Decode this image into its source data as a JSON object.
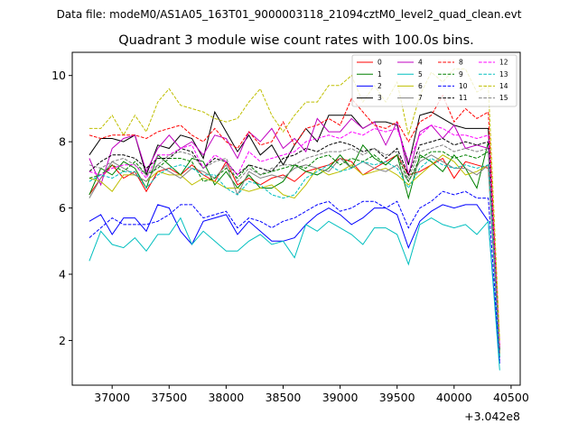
{
  "chart_data": {
    "type": "line",
    "suptitle": "Data file: modeM0/AS1A05_163T01_9000003118_21094cztM0_level2_quad_clean.evt",
    "title": "Quadrant 3 module wise count rates with 100.0s bins.",
    "xlabel": "",
    "ylabel": "",
    "x_offset_label": "+3.042e8",
    "xlim": [
      36650,
      40580
    ],
    "ylim": [
      0.65,
      10.7
    ],
    "x_ticks": [
      37000,
      37500,
      38000,
      38500,
      39000,
      39500,
      40000,
      40500
    ],
    "y_ticks": [
      2,
      4,
      6,
      8,
      10
    ],
    "grid": false,
    "legend_position": "top-right",
    "x": [
      36800,
      36900,
      37000,
      37100,
      37200,
      37300,
      37400,
      37500,
      37600,
      37700,
      37800,
      37900,
      38000,
      38100,
      38200,
      38300,
      38400,
      38500,
      38600,
      38700,
      38800,
      38900,
      39000,
      39100,
      39200,
      39300,
      39400,
      39500,
      39600,
      39700,
      39800,
      39900,
      40000,
      40100,
      40200,
      40300,
      40400
    ],
    "series": [
      {
        "name": "0",
        "color": "#ff0000",
        "dash": "solid",
        "values": [
          6.4,
          6.9,
          7.3,
          6.9,
          7.1,
          6.5,
          7.1,
          7.2,
          7.0,
          7.3,
          7.0,
          6.8,
          7.4,
          6.7,
          6.9,
          6.7,
          6.9,
          7.0,
          6.8,
          7.1,
          7.2,
          7.3,
          7.5,
          7.4,
          7.0,
          7.2,
          7.4,
          7.6,
          7.0,
          7.1,
          7.3,
          7.5,
          6.9,
          7.4,
          7.3,
          7.2,
          1.6
        ]
      },
      {
        "name": "1",
        "color": "#008000",
        "dash": "solid",
        "values": [
          6.4,
          7.2,
          7.0,
          7.4,
          7.2,
          6.6,
          7.6,
          7.3,
          7.0,
          7.5,
          7.4,
          6.7,
          7.1,
          6.6,
          7.0,
          6.6,
          6.6,
          6.8,
          7.3,
          7.1,
          7.0,
          7.2,
          7.6,
          7.2,
          7.9,
          7.5,
          7.3,
          7.6,
          6.3,
          7.6,
          7.4,
          7.1,
          7.6,
          7.2,
          6.6,
          8.0,
          1.5
        ]
      },
      {
        "name": "2",
        "color": "#0000ff",
        "dash": "solid",
        "values": [
          5.6,
          5.8,
          5.2,
          5.7,
          5.7,
          5.3,
          6.1,
          6.0,
          5.3,
          4.9,
          5.6,
          5.7,
          5.8,
          5.2,
          5.6,
          5.3,
          5.0,
          5.0,
          5.1,
          5.5,
          5.8,
          6.0,
          5.8,
          5.5,
          5.7,
          6.0,
          6.0,
          5.8,
          4.8,
          5.6,
          5.9,
          6.1,
          6.0,
          6.1,
          6.1,
          5.6,
          1.3
        ]
      },
      {
        "name": "3",
        "color": "#000000",
        "dash": "solid",
        "values": [
          7.6,
          8.1,
          8.1,
          8.0,
          8.2,
          7.0,
          7.9,
          7.8,
          8.2,
          8.1,
          7.5,
          8.9,
          8.3,
          7.7,
          8.2,
          7.6,
          7.9,
          7.3,
          7.9,
          8.4,
          8.0,
          8.8,
          8.8,
          8.8,
          8.4,
          8.6,
          8.6,
          8.5,
          7.3,
          8.8,
          8.9,
          8.7,
          8.5,
          8.4,
          8.4,
          8.4,
          1.7
        ]
      },
      {
        "name": "4",
        "color": "#c000c0",
        "dash": "solid",
        "values": [
          7.5,
          6.7,
          7.8,
          8.1,
          8.2,
          7.1,
          7.8,
          8.2,
          7.8,
          8.0,
          7.6,
          8.2,
          8.1,
          7.5,
          8.3,
          8.0,
          8.4,
          7.8,
          8.1,
          7.7,
          8.7,
          8.3,
          8.3,
          8.7,
          8.4,
          8.6,
          7.9,
          8.6,
          7.0,
          8.3,
          8.5,
          8.1,
          8.5,
          7.8,
          7.9,
          7.8,
          1.8
        ]
      },
      {
        "name": "5",
        "color": "#00bfbf",
        "dash": "solid",
        "values": [
          4.4,
          5.3,
          4.9,
          4.8,
          5.1,
          4.7,
          5.2,
          5.2,
          5.7,
          4.9,
          5.3,
          5.0,
          4.7,
          4.7,
          5.0,
          5.2,
          4.9,
          5.0,
          4.5,
          5.5,
          5.3,
          5.6,
          5.4,
          5.2,
          4.9,
          5.4,
          5.4,
          5.2,
          4.3,
          5.5,
          5.7,
          5.5,
          5.4,
          5.5,
          5.2,
          5.6,
          1.1
        ]
      },
      {
        "name": "6",
        "color": "#bfbf00",
        "dash": "solid",
        "values": [
          6.9,
          6.8,
          6.5,
          7.0,
          7.0,
          6.8,
          7.1,
          7.0,
          7.0,
          6.7,
          6.9,
          6.8,
          6.6,
          6.6,
          6.5,
          6.6,
          6.7,
          6.4,
          6.3,
          6.7,
          7.2,
          7.0,
          7.1,
          7.3,
          7.0,
          7.1,
          7.2,
          7.0,
          6.7,
          7.0,
          7.3,
          7.6,
          7.4,
          7.0,
          7.1,
          7.3,
          1.6
        ]
      },
      {
        "name": "7",
        "color": "#808080",
        "dash": "solid",
        "values": [
          6.3,
          6.9,
          7.4,
          7.2,
          7.0,
          6.8,
          7.3,
          7.1,
          6.9,
          7.2,
          7.1,
          6.9,
          7.3,
          6.4,
          7.1,
          6.9,
          7.0,
          6.9,
          7.2,
          7.3,
          7.2,
          7.1,
          7.5,
          7.2,
          7.4,
          7.2,
          7.1,
          7.3,
          6.8,
          7.4,
          7.6,
          7.4,
          7.2,
          7.2,
          7.0,
          7.3,
          1.6
        ]
      },
      {
        "name": "8",
        "color": "#ff0000",
        "dash": "dashed",
        "values": [
          8.2,
          8.1,
          8.2,
          8.2,
          8.2,
          8.1,
          8.3,
          8.4,
          8.5,
          8.2,
          8.0,
          8.4,
          8.0,
          7.8,
          8.3,
          7.9,
          8.0,
          8.6,
          7.9,
          8.4,
          8.5,
          8.7,
          8.5,
          9.3,
          8.9,
          8.5,
          8.4,
          8.6,
          8.0,
          8.6,
          8.8,
          9.4,
          8.6,
          9.0,
          8.7,
          8.9,
          1.8
        ]
      },
      {
        "name": "9",
        "color": "#008000",
        "dash": "dashed",
        "values": [
          6.9,
          7.0,
          7.3,
          7.1,
          7.4,
          7.0,
          7.2,
          7.5,
          7.5,
          7.4,
          6.8,
          6.9,
          7.2,
          6.9,
          7.3,
          7.0,
          7.1,
          7.2,
          7.3,
          7.2,
          7.5,
          7.6,
          7.3,
          7.5,
          7.4,
          7.6,
          7.3,
          7.6,
          6.8,
          7.5,
          7.7,
          7.7,
          7.5,
          7.6,
          7.5,
          7.7,
          1.7
        ]
      },
      {
        "name": "10",
        "color": "#0000ff",
        "dash": "dashed",
        "values": [
          5.1,
          5.4,
          5.7,
          5.5,
          5.5,
          5.5,
          5.6,
          5.8,
          6.1,
          6.1,
          5.7,
          5.8,
          5.9,
          5.4,
          5.7,
          5.6,
          5.4,
          5.6,
          5.7,
          5.9,
          6.1,
          6.2,
          5.9,
          6.0,
          6.2,
          6.2,
          6.0,
          6.2,
          5.4,
          6.0,
          6.2,
          6.5,
          6.4,
          6.5,
          6.3,
          6.3,
          1.4
        ]
      },
      {
        "name": "11",
        "color": "#000000",
        "dash": "dashed",
        "values": [
          7.1,
          7.4,
          7.6,
          7.6,
          7.5,
          7.2,
          7.5,
          7.5,
          7.8,
          7.7,
          7.2,
          7.5,
          7.4,
          7.0,
          7.3,
          7.2,
          7.1,
          7.5,
          7.6,
          7.8,
          7.7,
          7.9,
          8.0,
          7.9,
          7.7,
          7.8,
          7.5,
          7.8,
          7.0,
          7.9,
          8.0,
          8.1,
          7.9,
          8.0,
          7.9,
          8.0,
          1.7
        ]
      },
      {
        "name": "12",
        "color": "#ff00ff",
        "dash": "dashed",
        "values": [
          7.1,
          7.0,
          7.2,
          7.3,
          7.3,
          6.9,
          7.6,
          7.6,
          7.8,
          7.9,
          7.2,
          7.6,
          7.4,
          7.0,
          7.7,
          7.4,
          7.5,
          7.6,
          7.7,
          8.0,
          8.1,
          8.2,
          8.1,
          8.3,
          8.2,
          8.4,
          8.3,
          8.4,
          7.4,
          8.2,
          8.5,
          8.4,
          8.2,
          8.2,
          8.1,
          8.2,
          1.8
        ]
      },
      {
        "name": "13",
        "color": "#00bfbf",
        "dash": "dashed",
        "values": [
          6.8,
          7.0,
          6.9,
          7.1,
          7.1,
          6.6,
          7.0,
          7.2,
          7.3,
          7.2,
          7.0,
          7.0,
          6.6,
          6.4,
          6.8,
          6.7,
          6.4,
          6.3,
          6.4,
          6.9,
          7.1,
          7.3,
          7.1,
          7.2,
          7.4,
          7.3,
          7.4,
          7.2,
          6.6,
          7.2,
          7.5,
          7.3,
          7.2,
          7.3,
          7.2,
          7.3,
          1.5
        ]
      },
      {
        "name": "14",
        "color": "#bfbf00",
        "dash": "dashed",
        "values": [
          8.4,
          8.4,
          8.8,
          8.2,
          8.8,
          8.3,
          9.2,
          9.6,
          9.1,
          9.0,
          8.9,
          8.7,
          8.6,
          8.7,
          9.2,
          9.6,
          8.8,
          8.3,
          8.8,
          9.2,
          9.2,
          9.7,
          9.7,
          10.0,
          9.2,
          9.7,
          9.2,
          9.8,
          8.2,
          9.4,
          10.1,
          9.8,
          10.2,
          10.2,
          9.5,
          9.7,
          2.0
        ]
      },
      {
        "name": "15",
        "color": "#808080",
        "dash": "dashed",
        "values": [
          7.3,
          7.2,
          7.4,
          7.5,
          7.3,
          7.0,
          7.3,
          7.6,
          7.7,
          7.6,
          7.2,
          7.4,
          7.5,
          6.8,
          7.2,
          7.0,
          7.2,
          7.3,
          7.3,
          7.5,
          7.6,
          7.7,
          7.7,
          7.8,
          7.6,
          7.8,
          7.6,
          7.7,
          6.9,
          7.7,
          7.8,
          7.9,
          7.7,
          7.8,
          7.7,
          7.8,
          1.6
        ]
      }
    ]
  }
}
